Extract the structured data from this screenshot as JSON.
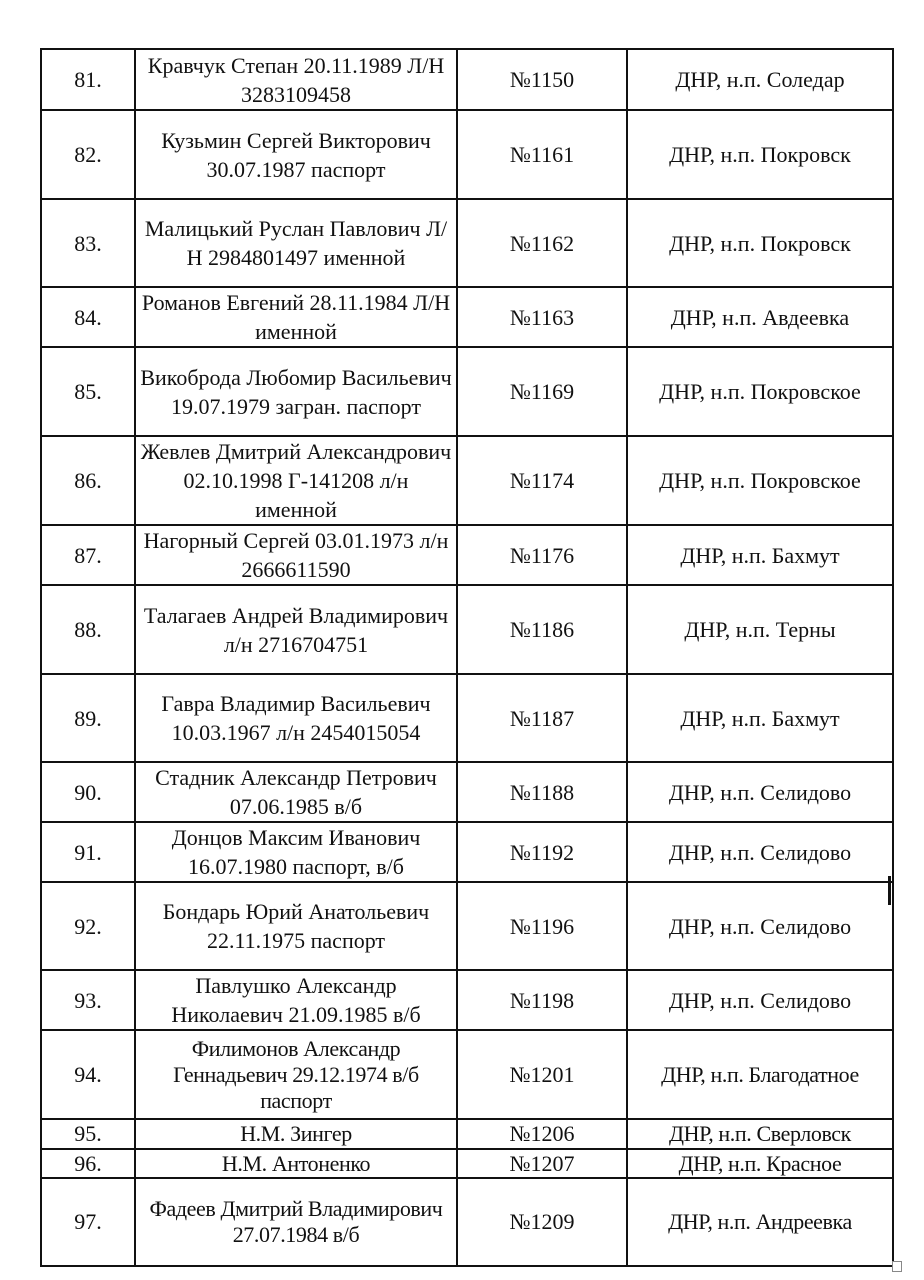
{
  "table": {
    "rows": [
      {
        "num": "81.",
        "name": "Кравчук Степан 20.11.1989 Л/Н 3283109458",
        "doc": "№1150",
        "place": "ДНР, н.п. Соледар"
      },
      {
        "num": "82.",
        "name": "Кузьмин Сергей Викторович 30.07.1987 паспорт",
        "doc": "№1161",
        "place": "ДНР, н.п. Покровск"
      },
      {
        "num": "83.",
        "name": "Малицький Руслан Павлович Л/Н 2984801497 именной",
        "doc": "№1162",
        "place": "ДНР, н.п. Покровск"
      },
      {
        "num": "84.",
        "name": "Романов Евгений 28.11.1984 Л/Н именной",
        "doc": "№1163",
        "place": "ДНР, н.п. Авдеевка"
      },
      {
        "num": "85.",
        "name": "Викоброда Любомир Васильевич 19.07.1979 загран. паспорт",
        "doc": "№1169",
        "place": "ДНР, н.п. Покровское"
      },
      {
        "num": "86.",
        "name": "Жевлев Дмитрий Александрович 02.10.1998 Г-141208 л/н именной",
        "doc": "№1174",
        "place": "ДНР, н.п. Покровское"
      },
      {
        "num": "87.",
        "name": "Нагорный Сергей 03.01.1973 л/н 2666611590",
        "doc": "№1176",
        "place": "ДНР, н.п. Бахмут"
      },
      {
        "num": "88.",
        "name": "Талагаев Андрей Владимирович л/н 2716704751",
        "doc": "№1186",
        "place": "ДНР, н.п. Терны"
      },
      {
        "num": "89.",
        "name": "Гавра Владимир Васильевич 10.03.1967 л/н 2454015054",
        "doc": "№1187",
        "place": "ДНР, н.п. Бахмут"
      },
      {
        "num": "90.",
        "name": "Стадник Александр Петрович 07.06.1985 в/б",
        "doc": "№1188",
        "place": "ДНР, н.п. Селидово"
      },
      {
        "num": "91.",
        "name": "Донцов Максим Иванович 16.07.1980 паспорт, в/б",
        "doc": "№1192",
        "place": "ДНР, н.п. Селидово"
      },
      {
        "num": "92.",
        "name": "Бондарь Юрий Анатольевич 22.11.1975 паспорт",
        "doc": "№1196",
        "place": "ДНР, н.п. Селидово"
      },
      {
        "num": "93.",
        "name": "Павлушко Александр Николаевич 21.09.1985 в/б",
        "doc": "№1198",
        "place": "ДНР, н.п. Селидово"
      },
      {
        "num": "94.",
        "name": "Филимонов Александр Геннадьевич 29.12.1974 в/б паспорт",
        "doc": "№1201",
        "place": "ДНР, н.п. Благодатное"
      },
      {
        "num": "95.",
        "name": "Н.М. Зингер",
        "doc": "№1206",
        "place": "ДНР, н.п. Сверловск"
      },
      {
        "num": "96.",
        "name": "Н.М. Антоненко",
        "doc": "№1207",
        "place": "ДНР, н.п. Красное"
      },
      {
        "num": "97.",
        "name": "Фадеев Дмитрий Владимирович 27.07.1984 в/б",
        "doc": "№1209",
        "place": "ДНР, н.п. Андреевка"
      }
    ]
  }
}
